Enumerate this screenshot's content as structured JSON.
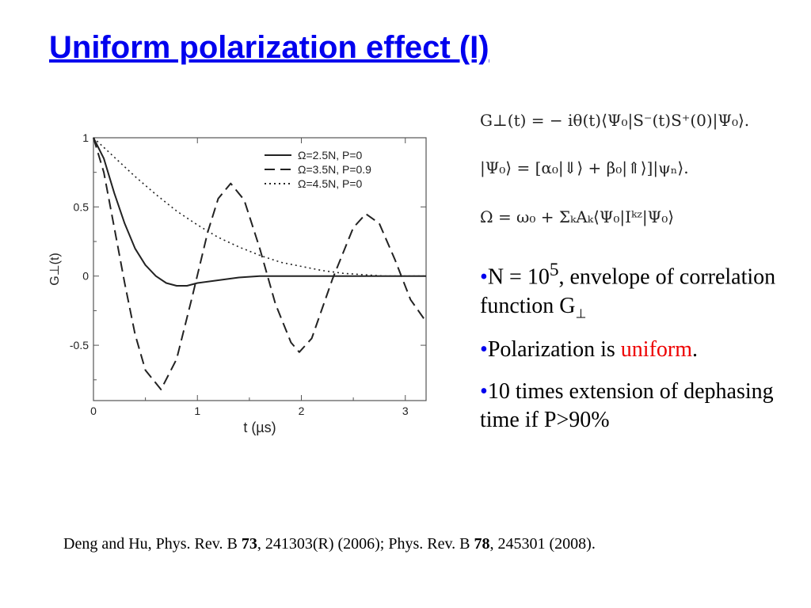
{
  "title": "Uniform polarization effect (I)",
  "chart_data": {
    "type": "line",
    "xlabel": "t  (µs)",
    "ylabel": "G⊥(t)",
    "xlim": [
      0,
      3.2
    ],
    "ylim": [
      -0.9,
      1.0
    ],
    "xticks": [
      "0",
      "1",
      "2",
      "3"
    ],
    "yticks": [
      "1",
      "0.5",
      "0",
      "-0.5"
    ],
    "legend_position": "top-right",
    "series": [
      {
        "name": "Ω=2.5N, P=0",
        "style": "solid",
        "x": [
          0,
          0.1,
          0.2,
          0.3,
          0.4,
          0.5,
          0.6,
          0.7,
          0.8,
          0.9,
          1.0,
          1.2,
          1.4,
          1.6,
          1.8,
          2.0,
          2.5,
          3.0,
          3.2
        ],
        "y": [
          1.0,
          0.85,
          0.6,
          0.38,
          0.2,
          0.08,
          0.0,
          -0.05,
          -0.07,
          -0.07,
          -0.05,
          -0.03,
          -0.01,
          0.0,
          0.0,
          0.0,
          0.0,
          0.0,
          0.0
        ]
      },
      {
        "name": "Ω=3.5N, P=0.9",
        "style": "dashed",
        "x": [
          0,
          0.1,
          0.2,
          0.3,
          0.4,
          0.5,
          0.65,
          0.8,
          0.95,
          1.1,
          1.2,
          1.32,
          1.45,
          1.6,
          1.75,
          1.9,
          1.98,
          2.1,
          2.3,
          2.5,
          2.62,
          2.75,
          2.9,
          3.05,
          3.2
        ],
        "y": [
          1.0,
          0.75,
          0.35,
          -0.05,
          -0.42,
          -0.68,
          -0.82,
          -0.6,
          -0.15,
          0.32,
          0.56,
          0.67,
          0.55,
          0.2,
          -0.2,
          -0.48,
          -0.55,
          -0.45,
          -0.02,
          0.35,
          0.45,
          0.38,
          0.12,
          -0.17,
          -0.33
        ]
      },
      {
        "name": "Ω=4.5N, P=0",
        "style": "dotted",
        "x": [
          0,
          0.2,
          0.4,
          0.6,
          0.8,
          1.0,
          1.2,
          1.4,
          1.6,
          1.8,
          2.0,
          2.2,
          2.4,
          2.6,
          2.8,
          3.0,
          3.2
        ],
        "y": [
          1.0,
          0.86,
          0.72,
          0.59,
          0.47,
          0.37,
          0.28,
          0.21,
          0.15,
          0.1,
          0.07,
          0.04,
          0.02,
          0.01,
          0.0,
          0.0,
          0.0
        ]
      }
    ]
  },
  "equations": {
    "eq1": "G⊥(t) = − iθ(t)⟨Ψ₀|S⁻(t)S⁺(0)|Ψ₀⟩.",
    "eq2": "|Ψ₀⟩ = [α₀|⇓⟩ + β₀|⇑⟩]|ψₙ⟩.",
    "eq3": "Ω = ω₀ + ΣₖAₖ⟨Ψ₀|Iᵏᶻ|Ψ₀⟩"
  },
  "bullets": {
    "b1_pre": "N = 10",
    "b1_sup": "5",
    "b1_post": ", envelope of correlation function G",
    "b1_sub": "⊥",
    "b2_pre": "Polarization is ",
    "b2_red": "uniform",
    "b2_post": ".",
    "b3": "10 times extension of dephasing time if P>90%"
  },
  "reference": {
    "r1": "Deng and Hu, Phys. Rev. B ",
    "v1": "73",
    "r2": ", 241303(R) (2006);  Phys. Rev. B ",
    "v2": "78",
    "r3": ", 245301 (2008)."
  },
  "colors": {
    "title": "#0000ee",
    "highlight": "#ee0000",
    "bullet": "#0000ee"
  }
}
